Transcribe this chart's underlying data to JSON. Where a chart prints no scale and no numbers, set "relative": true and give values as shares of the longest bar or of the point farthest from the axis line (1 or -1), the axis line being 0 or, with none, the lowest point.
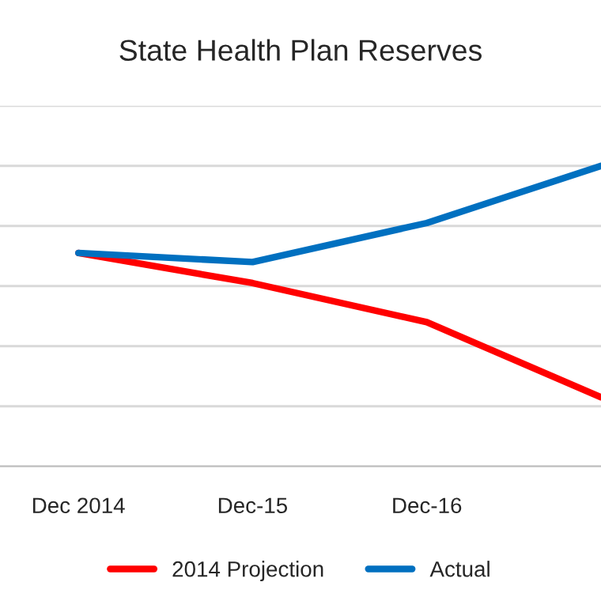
{
  "chart_data": {
    "type": "line",
    "title": "State Health Plan Reserves",
    "relative": true,
    "grid": "y",
    "legend": "bottom",
    "categories": [
      "Dec 2014",
      "Dec-15",
      "Dec-16",
      null
    ],
    "series": [
      {
        "name": "2014 Projection",
        "color": "#ff0000",
        "values": [
          0.71,
          0.61,
          0.48,
          0.23
        ]
      },
      {
        "name": "Actual",
        "color": "#0070c0",
        "values": [
          0.71,
          0.68,
          0.81,
          1.0
        ]
      }
    ]
  }
}
